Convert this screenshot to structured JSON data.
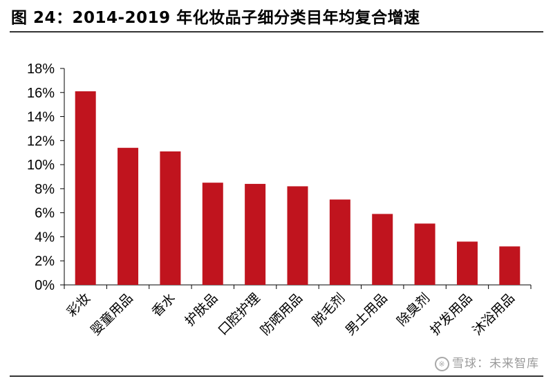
{
  "title": "图 24：2014-2019 年化妆品子细分类目年均复合增速",
  "watermark": "雪球：未来智库",
  "colors": {
    "bar": "#C0141E",
    "axis": "#000000"
  },
  "chart_data": {
    "type": "bar",
    "categories": [
      "彩妆",
      "婴童用品",
      "香水",
      "护肤品",
      "口腔护理",
      "防晒用品",
      "脱毛剂",
      "男士用品",
      "除臭剂",
      "护发用品",
      "沐浴用品"
    ],
    "values": [
      16.1,
      11.4,
      11.1,
      8.5,
      8.4,
      8.2,
      7.1,
      5.9,
      5.1,
      3.6,
      3.2
    ],
    "unit": "%",
    "ylim": [
      0,
      18
    ],
    "yticks": [
      "0%",
      "2%",
      "4%",
      "6%",
      "8%",
      "10%",
      "12%",
      "14%",
      "16%",
      "18%"
    ],
    "grid": false,
    "legend": "none"
  }
}
